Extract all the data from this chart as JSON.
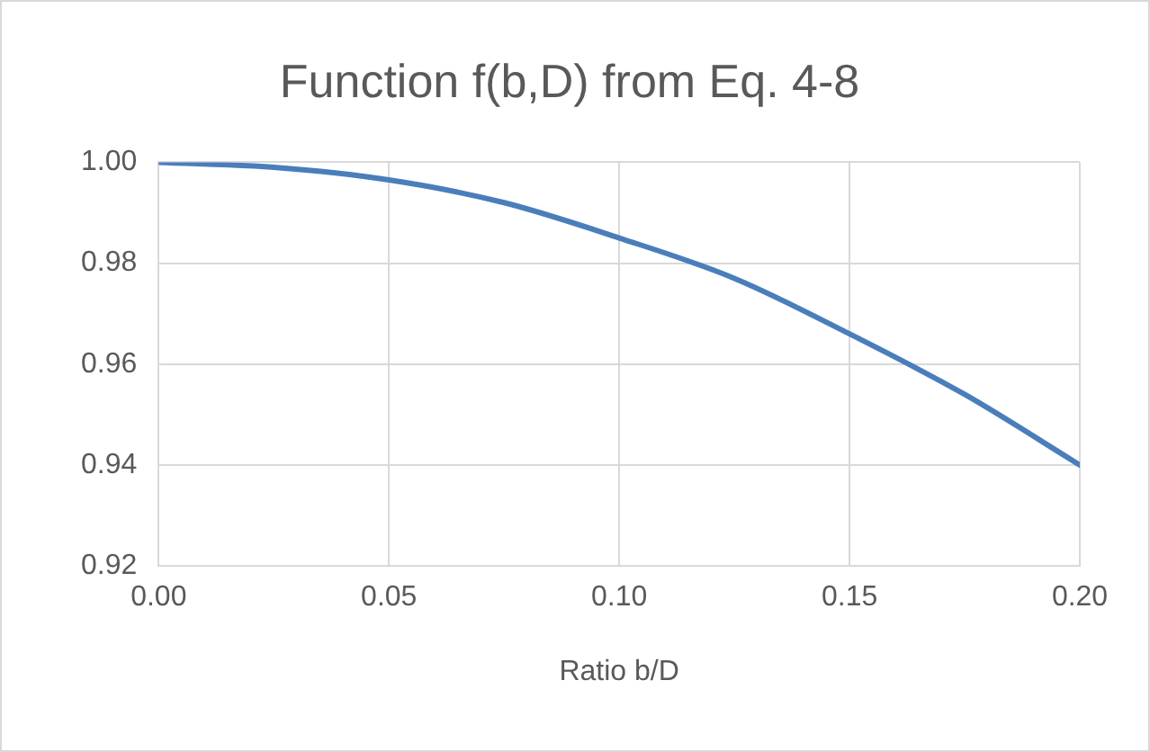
{
  "chart_data": {
    "type": "line",
    "title": "Function f(b,D) from Eq. 4-8",
    "xlabel": "Ratio b/D",
    "x": [
      0,
      0.025,
      0.05,
      0.075,
      0.1,
      0.125,
      0.15,
      0.175,
      0.2
    ],
    "series": [
      {
        "color": "#4a7ebb",
        "values": [
          1.0,
          0.999,
          0.9965,
          0.992,
          0.985,
          0.977,
          0.966,
          0.954,
          0.94
        ]
      }
    ],
    "xlim": [
      0,
      0.2
    ],
    "ylim": [
      0.92,
      1.0
    ],
    "xticks": [
      {
        "value": 0,
        "label": "0.00"
      },
      {
        "value": 0.05,
        "label": "0.05"
      },
      {
        "value": 0.1,
        "label": "0.10"
      },
      {
        "value": 0.15,
        "label": "0.15"
      },
      {
        "value": 0.2,
        "label": "0.20"
      }
    ],
    "yticks": [
      {
        "value": 0.92,
        "label": "0.92"
      },
      {
        "value": 0.94,
        "label": "0.94"
      },
      {
        "value": 0.96,
        "label": "0.96"
      },
      {
        "value": 0.98,
        "label": "0.98"
      },
      {
        "value": 1.0,
        "label": "1.00"
      }
    ],
    "grid": true,
    "legend": false,
    "marker": "none",
    "line_style": "solid"
  }
}
